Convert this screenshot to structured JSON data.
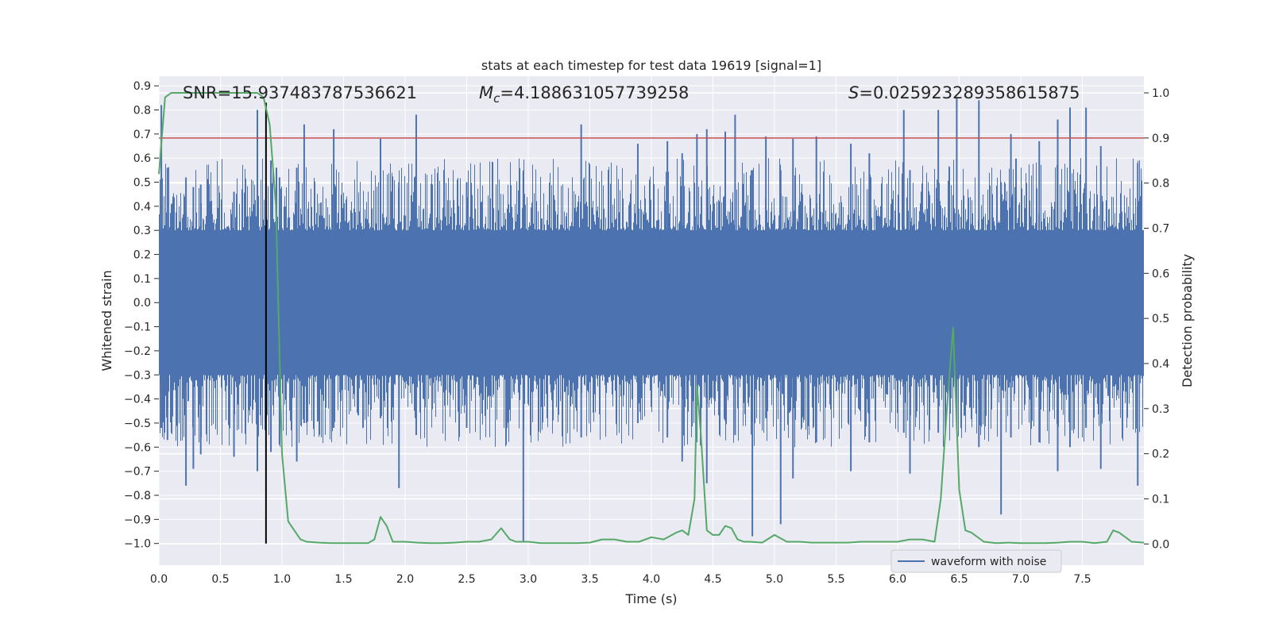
{
  "chart_data": {
    "type": "line",
    "title": "stats at each timestep for test data 19619 [signal=1]",
    "xlabel": "Time (s)",
    "ylabel_left": "Whitened strain",
    "ylabel_right": "Detection probability",
    "xlim": [
      0.0,
      8.0
    ],
    "ylim_left": [
      -1.09,
      0.94
    ],
    "ylim_right": [
      -0.047,
      1.037
    ],
    "x_ticks": [
      "0.0",
      "0.5",
      "1.0",
      "1.5",
      "2.0",
      "2.5",
      "3.0",
      "3.5",
      "4.0",
      "4.5",
      "5.0",
      "5.5",
      "6.0",
      "6.5",
      "7.0",
      "7.5"
    ],
    "y_ticks_left": [
      "0.9",
      "0.8",
      "0.7",
      "0.6",
      "0.5",
      "0.4",
      "0.3",
      "0.2",
      "0.1",
      "0.0",
      "−0.1",
      "−0.2",
      "−0.3",
      "−0.4",
      "−0.5",
      "−0.6",
      "−0.7",
      "−0.8",
      "−0.9",
      "−1.0"
    ],
    "y_ticks_right": [
      "1.0",
      "0.9",
      "0.8",
      "0.7",
      "0.6",
      "0.5",
      "0.4",
      "0.3",
      "0.2",
      "0.1",
      "0.0"
    ],
    "annotations": {
      "snr_label": "SNR=15.937483787536621",
      "mc_symbol": "M",
      "mc_sub": "c",
      "mc_value": "=4.188631057739258",
      "s_symbol": "S",
      "s_value": "=0.025923289358615875"
    },
    "legend": [
      {
        "label": "waveform with noise",
        "color": "#4c72b0"
      }
    ],
    "colors": {
      "waveform": "#4c72b0",
      "probability": "#55a868",
      "threshold": "#c44e52",
      "marker": "#000000",
      "background": "#eaeaf2",
      "grid": "#ffffff"
    },
    "threshold_right": 0.9,
    "vertical_marker_x": 0.87,
    "waveform_spikes": [
      {
        "x": 0.02,
        "low": -0.52,
        "high": 0.82
      },
      {
        "x": 0.07,
        "low": -0.57,
        "high": 0.56
      },
      {
        "x": 0.22,
        "low": -0.76,
        "high": 0.52
      },
      {
        "x": 0.28,
        "low": -0.69,
        "high": 0.48
      },
      {
        "x": 0.34,
        "low": -0.63,
        "high": 0.49
      },
      {
        "x": 0.61,
        "low": -0.64,
        "high": 0.46
      },
      {
        "x": 0.8,
        "low": -0.7,
        "high": 0.8
      },
      {
        "x": 0.91,
        "low": -0.62,
        "high": 0.59
      },
      {
        "x": 0.98,
        "low": -0.59,
        "high": 0.52
      },
      {
        "x": 1.12,
        "low": -0.66,
        "high": 0.56
      },
      {
        "x": 1.18,
        "low": -0.5,
        "high": 0.74
      },
      {
        "x": 1.42,
        "low": -0.52,
        "high": 0.72
      },
      {
        "x": 1.8,
        "low": -0.48,
        "high": 0.68
      },
      {
        "x": 1.95,
        "low": -0.77,
        "high": 0.5
      },
      {
        "x": 2.09,
        "low": -0.55,
        "high": 0.78
      },
      {
        "x": 2.5,
        "low": -0.52,
        "high": 0.5
      },
      {
        "x": 2.96,
        "low": -0.99,
        "high": 0.54
      },
      {
        "x": 3.43,
        "low": -0.56,
        "high": 0.74
      },
      {
        "x": 3.89,
        "low": -0.5,
        "high": 0.66
      },
      {
        "x": 4.13,
        "low": -0.56,
        "high": 0.67
      },
      {
        "x": 4.25,
        "low": -0.66,
        "high": 0.62
      },
      {
        "x": 4.37,
        "low": -0.42,
        "high": 0.7
      },
      {
        "x": 4.45,
        "low": -0.75,
        "high": 0.72
      },
      {
        "x": 4.6,
        "low": -0.49,
        "high": 0.71
      },
      {
        "x": 4.68,
        "low": -0.55,
        "high": 0.78
      },
      {
        "x": 4.82,
        "low": -0.97,
        "high": 0.55
      },
      {
        "x": 4.93,
        "low": -0.48,
        "high": 0.69
      },
      {
        "x": 5.05,
        "low": -0.92,
        "high": 0.55
      },
      {
        "x": 5.15,
        "low": -0.73,
        "high": 0.68
      },
      {
        "x": 5.34,
        "low": -0.58,
        "high": 0.69
      },
      {
        "x": 5.62,
        "low": -0.7,
        "high": 0.66
      },
      {
        "x": 5.77,
        "low": -0.58,
        "high": 0.62
      },
      {
        "x": 6.05,
        "low": -0.54,
        "high": 0.8
      },
      {
        "x": 6.1,
        "low": -0.71,
        "high": 0.55
      },
      {
        "x": 6.33,
        "low": -0.54,
        "high": 0.8
      },
      {
        "x": 6.48,
        "low": -0.52,
        "high": 0.85
      },
      {
        "x": 6.66,
        "low": -0.6,
        "high": 0.84
      },
      {
        "x": 6.84,
        "low": -0.88,
        "high": 0.5
      },
      {
        "x": 6.92,
        "low": -0.56,
        "high": 0.7
      },
      {
        "x": 7.15,
        "low": -0.58,
        "high": 0.67
      },
      {
        "x": 7.3,
        "low": -0.7,
        "high": 0.76
      },
      {
        "x": 7.4,
        "low": -0.6,
        "high": 0.81
      },
      {
        "x": 7.53,
        "low": -0.52,
        "high": 0.81
      },
      {
        "x": 7.65,
        "low": -0.69,
        "high": 0.65
      },
      {
        "x": 7.95,
        "low": -0.76,
        "high": 0.58
      }
    ],
    "probability_x": [
      0.0,
      0.05,
      0.1,
      0.2,
      0.4,
      0.6,
      0.75,
      0.8,
      0.85,
      0.9,
      0.95,
      1.0,
      1.05,
      1.1,
      1.15,
      1.2,
      1.3,
      1.4,
      1.5,
      1.6,
      1.7,
      1.75,
      1.8,
      1.85,
      1.9,
      2.0,
      2.1,
      2.2,
      2.3,
      2.4,
      2.5,
      2.6,
      2.7,
      2.78,
      2.85,
      2.9,
      3.0,
      3.1,
      3.2,
      3.3,
      3.4,
      3.5,
      3.6,
      3.7,
      3.8,
      3.9,
      4.0,
      4.1,
      4.2,
      4.25,
      4.3,
      4.35,
      4.37,
      4.4,
      4.45,
      4.5,
      4.55,
      4.6,
      4.65,
      4.7,
      4.75,
      4.8,
      4.9,
      5.0,
      5.1,
      5.2,
      5.3,
      5.4,
      5.5,
      5.6,
      5.7,
      5.8,
      5.9,
      6.0,
      6.1,
      6.2,
      6.3,
      6.35,
      6.4,
      6.45,
      6.5,
      6.55,
      6.6,
      6.7,
      6.8,
      6.9,
      7.0,
      7.1,
      7.2,
      7.3,
      7.4,
      7.5,
      7.6,
      7.7,
      7.75,
      7.8,
      7.9,
      8.0
    ],
    "probability_y": [
      0.82,
      0.99,
      1.0,
      1.0,
      1.0,
      1.0,
      1.0,
      1.0,
      0.99,
      0.93,
      0.75,
      0.2,
      0.05,
      0.03,
      0.01,
      0.005,
      0.003,
      0.002,
      0.002,
      0.002,
      0.002,
      0.01,
      0.06,
      0.04,
      0.005,
      0.005,
      0.003,
      0.002,
      0.002,
      0.003,
      0.005,
      0.005,
      0.01,
      0.035,
      0.01,
      0.005,
      0.005,
      0.002,
      0.002,
      0.002,
      0.002,
      0.003,
      0.01,
      0.01,
      0.005,
      0.005,
      0.015,
      0.01,
      0.025,
      0.03,
      0.02,
      0.1,
      0.35,
      0.25,
      0.03,
      0.02,
      0.02,
      0.04,
      0.035,
      0.01,
      0.005,
      0.005,
      0.003,
      0.02,
      0.005,
      0.005,
      0.003,
      0.003,
      0.003,
      0.003,
      0.005,
      0.005,
      0.005,
      0.005,
      0.01,
      0.01,
      0.005,
      0.1,
      0.3,
      0.48,
      0.12,
      0.03,
      0.025,
      0.005,
      0.002,
      0.003,
      0.002,
      0.002,
      0.002,
      0.003,
      0.005,
      0.005,
      0.002,
      0.005,
      0.03,
      0.025,
      0.005,
      0.003
    ]
  }
}
